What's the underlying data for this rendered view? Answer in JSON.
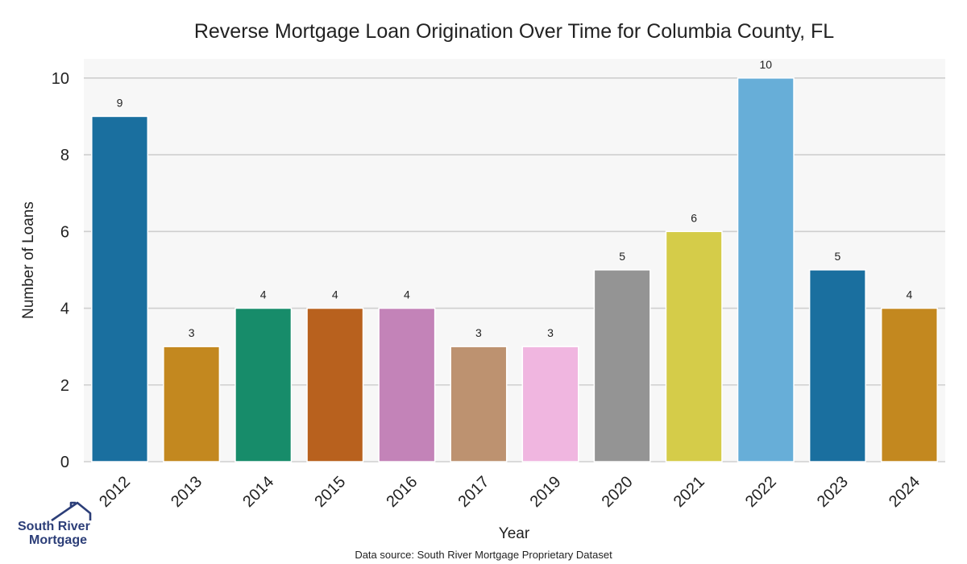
{
  "chart_data": {
    "type": "bar",
    "title": "Reverse Mortgage Loan Origination Over Time for Columbia County, FL",
    "xlabel": "Year",
    "ylabel": "Number of Loans",
    "categories": [
      "2012",
      "2013",
      "2014",
      "2015",
      "2016",
      "2017",
      "2019",
      "2020",
      "2021",
      "2022",
      "2023",
      "2024"
    ],
    "values": [
      9,
      3,
      4,
      4,
      4,
      3,
      3,
      5,
      6,
      10,
      5,
      4
    ],
    "colors": [
      "#1a6f9f",
      "#c3881f",
      "#178c6a",
      "#b8611e",
      "#c383b8",
      "#bd9270",
      "#f0b6e0",
      "#949494",
      "#d5cc49",
      "#67aed8",
      "#1a6f9f",
      "#c3881f"
    ],
    "ylim": [
      0,
      10.5
    ],
    "yticks": [
      0,
      2,
      4,
      6,
      8,
      10
    ],
    "grid": true,
    "data_labels": true,
    "background": "#f7f7f7"
  },
  "footer": {
    "source": "Data source: South River Mortgage Proprietary Dataset"
  },
  "logo": {
    "line1": "South River",
    "line2": "Mortgage",
    "icon": "house-icon",
    "color": "#2c3e78"
  }
}
